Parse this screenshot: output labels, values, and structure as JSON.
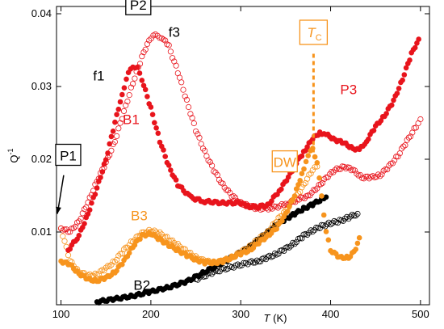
{
  "chart_data": {
    "type": "scatter",
    "xlabel_italic": "T",
    "xlabel_unit": " (K)",
    "ylabel_base": "Q",
    "ylabel_sup": "-1",
    "xlim": [
      95,
      510
    ],
    "ylim": [
      0,
      0.041
    ],
    "xticks": [
      100,
      200,
      300,
      400,
      500
    ],
    "xtick_labels": [
      "100",
      "200",
      "300",
      "400",
      "500"
    ],
    "yticks": [
      0.01,
      0.02,
      0.03,
      0.04
    ],
    "ytick_labels": [
      "0.01",
      "0.02",
      "0.03",
      "0.04"
    ],
    "grid": false,
    "colors": {
      "red": "#e8141c",
      "orange": "#f7941d",
      "black": "#000000"
    },
    "series": [
      {
        "key": "red_filled",
        "color": "#e8141c",
        "filled": true,
        "points": [
          [
            108,
            0.0075
          ],
          [
            120,
            0.0095
          ],
          [
            130,
            0.0125
          ],
          [
            140,
            0.016
          ],
          [
            150,
            0.02
          ],
          [
            160,
            0.025
          ],
          [
            168,
            0.029
          ],
          [
            175,
            0.0318
          ],
          [
            180,
            0.0328
          ],
          [
            185,
            0.0325
          ],
          [
            190,
            0.031
          ],
          [
            200,
            0.027
          ],
          [
            210,
            0.0225
          ],
          [
            220,
            0.019
          ],
          [
            230,
            0.0165
          ],
          [
            245,
            0.0147
          ],
          [
            260,
            0.0142
          ],
          [
            280,
            0.014
          ],
          [
            300,
            0.014
          ],
          [
            308,
            0.0135
          ],
          [
            320,
            0.0135
          ],
          [
            330,
            0.0137
          ],
          [
            345,
            0.016
          ],
          [
            355,
            0.018
          ],
          [
            362,
            0.0195
          ],
          [
            370,
            0.021
          ],
          [
            380,
            0.0228
          ],
          [
            388,
            0.0237
          ],
          [
            395,
            0.0234
          ],
          [
            405,
            0.0227
          ],
          [
            415,
            0.0222
          ],
          [
            425,
            0.0215
          ],
          [
            432,
            0.0213
          ],
          [
            440,
            0.0225
          ],
          [
            450,
            0.0245
          ],
          [
            460,
            0.026
          ],
          [
            470,
            0.028
          ],
          [
            480,
            0.031
          ],
          [
            490,
            0.0345
          ],
          [
            498,
            0.0365
          ]
        ]
      },
      {
        "key": "red_open",
        "color": "#e8141c",
        "filled": false,
        "points": [
          [
            100,
            0.0105
          ],
          [
            110,
            0.01
          ],
          [
            120,
            0.0115
          ],
          [
            130,
            0.014
          ],
          [
            140,
            0.017
          ],
          [
            150,
            0.0195
          ],
          [
            160,
            0.0225
          ],
          [
            170,
            0.0265
          ],
          [
            180,
            0.0305
          ],
          [
            190,
            0.034
          ],
          [
            198,
            0.0365
          ],
          [
            205,
            0.037
          ],
          [
            212,
            0.0368
          ],
          [
            220,
            0.0355
          ],
          [
            230,
            0.032
          ],
          [
            240,
            0.028
          ],
          [
            250,
            0.024
          ],
          [
            260,
            0.021
          ],
          [
            270,
            0.0185
          ],
          [
            280,
            0.0165
          ],
          [
            290,
            0.015
          ],
          [
            300,
            0.014
          ],
          [
            310,
            0.0135
          ],
          [
            320,
            0.0132
          ],
          [
            335,
            0.0133
          ],
          [
            350,
            0.0138
          ],
          [
            365,
            0.0145
          ],
          [
            375,
            0.015
          ],
          [
            385,
            0.016
          ],
          [
            395,
            0.0175
          ],
          [
            405,
            0.0185
          ],
          [
            415,
            0.019
          ],
          [
            425,
            0.0185
          ],
          [
            435,
            0.0175
          ],
          [
            445,
            0.0175
          ],
          [
            455,
            0.0178
          ],
          [
            465,
            0.019
          ],
          [
            475,
            0.0205
          ],
          [
            485,
            0.0225
          ],
          [
            495,
            0.0245
          ],
          [
            500,
            0.0255
          ]
        ]
      },
      {
        "key": "orange_filled",
        "color": "#f7941d",
        "filled": true,
        "points": [
          [
            100,
            0.006
          ],
          [
            110,
            0.0055
          ],
          [
            120,
            0.0043
          ],
          [
            130,
            0.0035
          ],
          [
            140,
            0.0033
          ],
          [
            150,
            0.0037
          ],
          [
            160,
            0.0045
          ],
          [
            170,
            0.006
          ],
          [
            180,
            0.008
          ],
          [
            190,
            0.0095
          ],
          [
            200,
            0.0098
          ],
          [
            210,
            0.009
          ],
          [
            220,
            0.0082
          ],
          [
            230,
            0.0075
          ],
          [
            240,
            0.0068
          ],
          [
            250,
            0.0062
          ],
          [
            260,
            0.0058
          ],
          [
            270,
            0.0058
          ],
          [
            280,
            0.006
          ],
          [
            290,
            0.0065
          ],
          [
            300,
            0.007
          ],
          [
            310,
            0.0075
          ],
          [
            320,
            0.0085
          ],
          [
            330,
            0.0095
          ],
          [
            340,
            0.0105
          ],
          [
            350,
            0.0125
          ],
          [
            360,
            0.015
          ],
          [
            368,
            0.018
          ],
          [
            375,
            0.0205
          ],
          [
            380,
            0.0215
          ],
          [
            385,
            0.0195
          ],
          [
            390,
            0.015
          ],
          [
            395,
            0.01
          ],
          [
            400,
            0.0075
          ],
          [
            410,
            0.0065
          ],
          [
            420,
            0.0065
          ],
          [
            428,
            0.0075
          ],
          [
            432,
            0.0092
          ]
        ]
      },
      {
        "key": "orange_open",
        "color": "#f7941d",
        "filled": false,
        "points": [
          [
            100,
            0.0105
          ],
          [
            110,
            0.006
          ],
          [
            120,
            0.0045
          ],
          [
            130,
            0.004
          ],
          [
            140,
            0.0042
          ],
          [
            150,
            0.005
          ],
          [
            160,
            0.006
          ],
          [
            170,
            0.0075
          ],
          [
            180,
            0.0088
          ],
          [
            190,
            0.0098
          ],
          [
            200,
            0.0102
          ],
          [
            210,
            0.0098
          ],
          [
            220,
            0.009
          ],
          [
            230,
            0.0082
          ],
          [
            240,
            0.0073
          ],
          [
            250,
            0.0065
          ],
          [
            260,
            0.006
          ],
          [
            270,
            0.0058
          ],
          [
            280,
            0.006
          ],
          [
            290,
            0.0065
          ],
          [
            300,
            0.0072
          ],
          [
            310,
            0.008
          ],
          [
            320,
            0.009
          ],
          [
            330,
            0.01
          ],
          [
            340,
            0.0115
          ],
          [
            350,
            0.013
          ],
          [
            360,
            0.0145
          ],
          [
            370,
            0.0165
          ],
          [
            380,
            0.0185
          ],
          [
            385,
            0.019
          ]
        ]
      },
      {
        "key": "black_filled",
        "color": "#000000",
        "filled": true,
        "points": [
          [
            140,
            0.0004
          ],
          [
            160,
            0.0008
          ],
          [
            180,
            0.0012
          ],
          [
            200,
            0.0018
          ],
          [
            220,
            0.0024
          ],
          [
            240,
            0.0032
          ],
          [
            260,
            0.0045
          ],
          [
            280,
            0.0058
          ],
          [
            300,
            0.0072
          ],
          [
            310,
            0.008
          ],
          [
            320,
            0.009
          ],
          [
            330,
            0.01
          ],
          [
            340,
            0.011
          ],
          [
            350,
            0.0118
          ],
          [
            360,
            0.0125
          ],
          [
            370,
            0.0132
          ],
          [
            380,
            0.0138
          ],
          [
            390,
            0.0145
          ],
          [
            395,
            0.0148
          ]
        ]
      },
      {
        "key": "black_open",
        "color": "#000000",
        "filled": false,
        "points": [
          [
            250,
            0.0035
          ],
          [
            270,
            0.0045
          ],
          [
            290,
            0.0052
          ],
          [
            310,
            0.0058
          ],
          [
            320,
            0.006
          ],
          [
            330,
            0.0065
          ],
          [
            340,
            0.007
          ],
          [
            350,
            0.0077
          ],
          [
            360,
            0.0085
          ],
          [
            370,
            0.0095
          ],
          [
            380,
            0.0102
          ],
          [
            390,
            0.0108
          ],
          [
            400,
            0.0112
          ],
          [
            410,
            0.0115
          ],
          [
            420,
            0.012
          ],
          [
            430,
            0.0125
          ]
        ]
      }
    ],
    "tc_line": {
      "x": 381,
      "y_top": 0.0345,
      "y_bottom": 0.0205,
      "color": "#f7941d"
    },
    "annotations": [
      {
        "id": "p1",
        "text": "P1",
        "boxed": true,
        "color": "#000000",
        "x": 108,
        "y": 0.0205
      },
      {
        "id": "p2",
        "text": "P2",
        "boxed": true,
        "color": "#000000",
        "x": 186,
        "y": 0.0412
      },
      {
        "id": "f3",
        "text": "f3",
        "boxed": false,
        "color": "#000000",
        "x": 226,
        "y": 0.0375
      },
      {
        "id": "f1",
        "text": "f1",
        "boxed": false,
        "color": "#000000",
        "x": 142,
        "y": 0.0315
      },
      {
        "id": "b1",
        "text": "B1",
        "boxed": false,
        "color": "#e8141c",
        "x": 178,
        "y": 0.0255
      },
      {
        "id": "b3",
        "text": "B3",
        "boxed": false,
        "color": "#f7941d",
        "x": 187,
        "y": 0.0123
      },
      {
        "id": "b2",
        "text": "B2",
        "boxed": false,
        "color": "#000000",
        "x": 190,
        "y": 0.0027
      },
      {
        "id": "dw",
        "text": "DW",
        "boxed": true,
        "color": "#f7941d",
        "x": 349,
        "y": 0.0196
      },
      {
        "id": "p3",
        "text": "P3",
        "boxed": false,
        "color": "#e8141c",
        "x": 420,
        "y": 0.0296
      }
    ],
    "tc_label": {
      "italic": "T",
      "sub": "C",
      "color": "#f7941d",
      "x": 381,
      "y": 0.037
    },
    "arrow": {
      "from_x": 103,
      "from_y": 0.0178,
      "to_x": 96,
      "to_y": 0.0125,
      "color": "#000000"
    }
  }
}
